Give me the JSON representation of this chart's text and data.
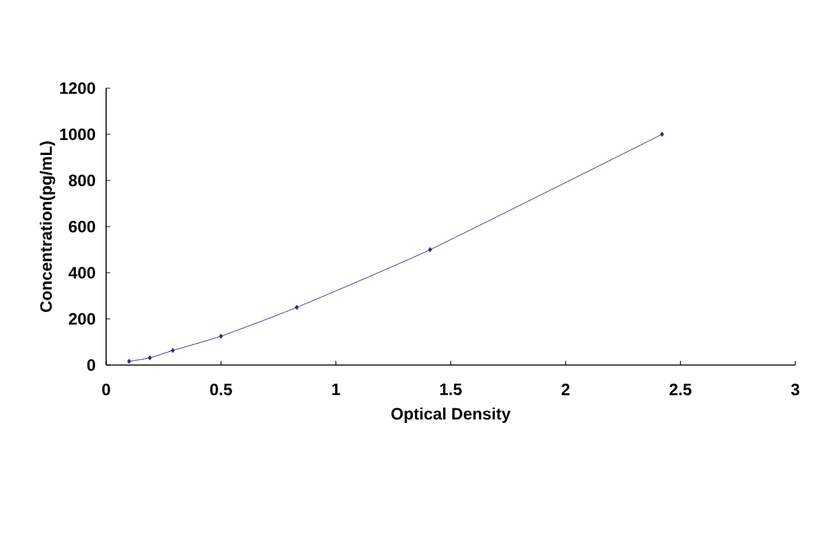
{
  "chart_data": {
    "type": "line",
    "xlabel": "Optical Density",
    "ylabel": "Concentration(pg/mL)",
    "x": [
      0.1,
      0.19,
      0.29,
      0.5,
      0.83,
      1.41,
      2.42
    ],
    "series": [
      {
        "color": "#2b2b80",
        "values": [
          16,
          31,
          63,
          125,
          250,
          500,
          1000
        ]
      }
    ],
    "xlim": [
      0,
      3
    ],
    "ylim": [
      0,
      1200
    ],
    "xticks": [
      0,
      0.5,
      1,
      1.5,
      2,
      2.5,
      3
    ],
    "yticks": [
      0,
      200,
      400,
      600,
      800,
      1000,
      1200
    ],
    "marker": "diamond",
    "line_style": "solid"
  }
}
